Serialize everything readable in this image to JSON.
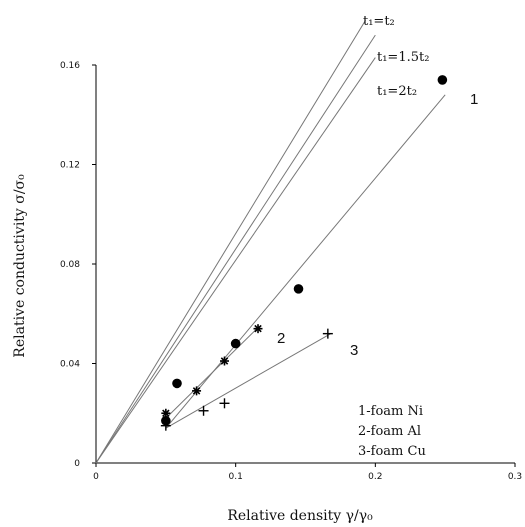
{
  "chart_data": {
    "type": "scatter",
    "title": "",
    "xlabel": "Relative density  γ/γ₀",
    "ylabel": "Relative conductivity σ/σ₀",
    "xlim": [
      0,
      0.3
    ],
    "ylim": [
      0,
      0.16
    ],
    "x_ticks": [
      0,
      0.1,
      0.2,
      0.3
    ],
    "x_tick_labels": [
      "0",
      "0.1",
      "0.2",
      "0.3"
    ],
    "y_ticks": [
      0,
      0.04,
      0.08,
      0.12,
      0.16
    ],
    "y_tick_labels": [
      "0",
      "0.04",
      "0.08",
      "0.12",
      "0.16"
    ],
    "reference_lines": [
      {
        "name": "t₁=t₂",
        "x": [
          0,
          0.193
        ],
        "y": [
          0,
          0.178
        ]
      },
      {
        "name": "t₁=1.5t₂",
        "x": [
          0,
          0.2
        ],
        "y": [
          0,
          0.172
        ]
      },
      {
        "name": "t₁=2t₂",
        "x": [
          0,
          0.2
        ],
        "y": [
          0,
          0.163
        ]
      }
    ],
    "series": [
      {
        "name": "1-foam Ni",
        "label": "1",
        "marker": "circle",
        "points": [
          [
            0.05,
            0.017
          ],
          [
            0.058,
            0.032
          ],
          [
            0.1,
            0.048
          ],
          [
            0.145,
            0.07
          ],
          [
            0.248,
            0.154
          ]
        ],
        "fit": [
          [
            0.05,
            0.014
          ],
          [
            0.25,
            0.148
          ]
        ]
      },
      {
        "name": "2-foam Al",
        "label": "2",
        "marker": "star",
        "points": [
          [
            0.05,
            0.02
          ],
          [
            0.072,
            0.029
          ],
          [
            0.092,
            0.041
          ],
          [
            0.116,
            0.054
          ]
        ],
        "fit": [
          [
            0.05,
            0.018
          ],
          [
            0.117,
            0.055
          ]
        ]
      },
      {
        "name": "3-foam Cu",
        "label": "3",
        "marker": "plus",
        "points": [
          [
            0.05,
            0.015
          ],
          [
            0.077,
            0.021
          ],
          [
            0.092,
            0.024
          ],
          [
            0.166,
            0.052
          ]
        ],
        "fit": [
          [
            0.05,
            0.014
          ],
          [
            0.168,
            0.052
          ]
        ]
      }
    ],
    "legend": [
      "1-foam Ni",
      "2-foam Al",
      "3-foam Cu"
    ],
    "legend_position": "bottom-right",
    "grid": false
  }
}
